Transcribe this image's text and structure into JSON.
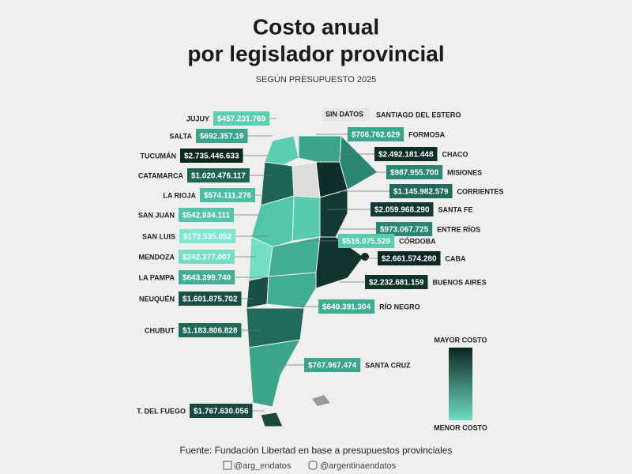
{
  "title_line1": "Costo anual",
  "title_line2": "por legislador provincial",
  "subtitle": "SEGÚN PRESUPUESTO 2025",
  "no_data": {
    "tag": "SIN DATOS",
    "name": "SANTIAGO DEL ESTERO"
  },
  "provinces": [
    {
      "name": "JUJUY",
      "cost": "$457.231.769",
      "color": "#5ccfb3"
    },
    {
      "name": "SALTA",
      "cost": "$692.357.19",
      "color": "#3aa58b"
    },
    {
      "name": "TUCUMÁN",
      "cost": "$2.735.446.633",
      "color": "#0c2620"
    },
    {
      "name": "CATAMARCA",
      "cost": "$1.020.476.117",
      "color": "#1d6656"
    },
    {
      "name": "LA RIOJA",
      "cost": "$574.111.276",
      "color": "#4bbfa3"
    },
    {
      "name": "SAN JUAN",
      "cost": "$542.934.111",
      "color": "#52c6aa"
    },
    {
      "name": "SAN LUIS",
      "cost": "$173.535.052",
      "color": "#7fe6cf"
    },
    {
      "name": "MENDOZA",
      "cost": "$242.377.007",
      "color": "#74dfc6"
    },
    {
      "name": "LA PAMPA",
      "cost": "$643.399.740",
      "color": "#3fae93"
    },
    {
      "name": "NEUQUÉN",
      "cost": "$1.601.875.702",
      "color": "#194f44"
    },
    {
      "name": "CHUBUT",
      "cost": "$1.183.806.828",
      "color": "#1f6a59"
    },
    {
      "name": "T. DEL FUEGO",
      "cost": "$1.767.630.056",
      "color": "#17493f"
    },
    {
      "name": "FORMOSA",
      "cost": "$706.762.629",
      "color": "#3aa58b"
    },
    {
      "name": "CHACO",
      "cost": "$2.492.181.448",
      "color": "#0f2e27"
    },
    {
      "name": "MISIONES",
      "cost": "$987.955.700",
      "color": "#2a8572"
    },
    {
      "name": "CORRIENTES",
      "cost": "$1.145.982.579",
      "color": "#1f6a59"
    },
    {
      "name": "SANTA FE",
      "cost": "$2.059.968.290",
      "color": "#123a32"
    },
    {
      "name": "ENTRE RÍOS",
      "cost": "$973.067.725",
      "color": "#2b8874"
    },
    {
      "name": "CÓRDOBA",
      "cost": "$516.075.529",
      "color": "#58cbb0"
    },
    {
      "name": "CABA",
      "cost": "$2.661.574.280",
      "color": "#0d2923"
    },
    {
      "name": "BUENOS AIRES",
      "cost": "$2.232.681.159",
      "color": "#10332c"
    },
    {
      "name": "RÍO NEGRO",
      "cost": "$640.391.304",
      "color": "#3fae93"
    },
    {
      "name": "SANTA CRUZ",
      "cost": "$767.967.474",
      "color": "#3aa58b"
    }
  ],
  "legend": {
    "high": "MAYOR COSTO",
    "low": "MENOR COSTO"
  },
  "source": "Fuente: Fundación Libertad en base a presupuestos provinciales",
  "social": [
    "@arg_endatos",
    "@argentinaendatos"
  ]
}
